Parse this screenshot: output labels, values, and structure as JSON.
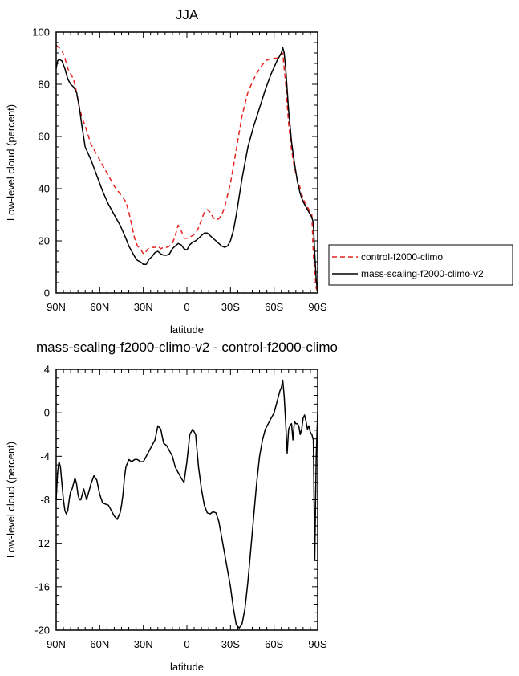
{
  "chart_data": [
    {
      "type": "line",
      "title": "JJA",
      "xlabel": "latitude",
      "ylabel": "Low-level cloud (percent)",
      "xlim": [
        -90,
        90
      ],
      "ylim": [
        0,
        100
      ],
      "x_tick_labels": [
        "90N",
        "60N",
        "30N",
        "0",
        "30S",
        "60S",
        "90S"
      ],
      "y_tick_labels": [
        "0",
        "20",
        "40",
        "60",
        "80",
        "100"
      ],
      "legend": {
        "placement": "right-outside"
      },
      "series": [
        {
          "name": "control-f2000-climo",
          "color": "#e8231f",
          "dash": "dashed",
          "x": [
            -90,
            -88,
            -86,
            -84,
            -82,
            -80,
            -78,
            -76,
            -74,
            -72,
            -70,
            -66,
            -62,
            -58,
            -54,
            -50,
            -46,
            -42,
            -40,
            -38,
            -36,
            -34,
            -32,
            -30,
            -28,
            -26,
            -22,
            -20,
            -18,
            -16,
            -14,
            -12,
            -10,
            -8,
            -6,
            -4,
            -2,
            0,
            2,
            4,
            6,
            8,
            10,
            12,
            14,
            16,
            18,
            20,
            22,
            24,
            26,
            30,
            34,
            38,
            42,
            46,
            50,
            54,
            58,
            62,
            64,
            66,
            68,
            70,
            72,
            74,
            76,
            78,
            80,
            82,
            84,
            85,
            86,
            87,
            88,
            89,
            90
          ],
          "y": [
            95,
            94,
            93,
            90,
            86,
            84,
            82,
            77,
            71,
            67,
            64,
            57,
            53,
            49,
            45,
            41,
            38,
            35,
            31,
            26,
            21,
            18,
            17,
            15,
            16,
            17.5,
            17.5,
            18,
            17,
            17.5,
            17.5,
            18,
            19,
            22,
            26,
            24,
            21,
            21,
            21.5,
            22,
            23,
            25,
            28,
            31,
            32,
            31,
            29,
            28,
            28.5,
            30,
            33,
            42,
            55,
            68,
            77,
            82,
            86,
            89,
            90,
            90,
            91,
            92,
            80,
            65,
            55,
            48,
            44,
            40,
            36,
            34,
            32,
            31,
            30,
            15,
            8,
            2,
            0
          ]
        },
        {
          "name": "mass-scaling-f2000-climo-v2",
          "color": "#000000",
          "dash": "solid",
          "x": [
            -90,
            -89,
            -88,
            -86,
            -84,
            -82,
            -80,
            -78,
            -76,
            -74,
            -72,
            -70,
            -66,
            -62,
            -58,
            -54,
            -50,
            -46,
            -42,
            -40,
            -38,
            -36,
            -34,
            -32,
            -30,
            -28,
            -26,
            -24,
            -22,
            -20,
            -18,
            -16,
            -14,
            -12,
            -10,
            -8,
            -6,
            -4,
            -2,
            0,
            2,
            4,
            6,
            8,
            10,
            12,
            14,
            16,
            18,
            20,
            22,
            24,
            26,
            28,
            30,
            32,
            34,
            38,
            42,
            46,
            50,
            54,
            58,
            62,
            64,
            65,
            66,
            67,
            68,
            70,
            72,
            74,
            76,
            78,
            80,
            82,
            84,
            86,
            87,
            88,
            89,
            90
          ],
          "y": [
            86,
            89,
            89.5,
            89,
            86,
            82,
            80,
            79,
            77,
            71,
            63,
            56,
            51,
            45,
            39,
            34,
            30,
            26,
            21,
            18,
            16,
            14,
            12.5,
            12,
            11,
            11,
            13,
            14,
            15.5,
            16,
            15,
            14.5,
            14.5,
            15,
            17,
            18,
            19,
            18.5,
            17,
            16.5,
            18.5,
            19.5,
            20,
            21,
            22,
            23,
            23,
            22,
            21,
            20,
            19,
            18,
            17.5,
            18,
            20,
            24,
            30,
            44,
            56,
            64,
            71,
            78,
            84,
            89,
            91,
            92,
            94,
            92,
            86,
            70,
            58,
            50,
            43,
            38,
            35,
            33,
            31,
            29,
            27,
            15,
            5,
            0
          ]
        }
      ]
    },
    {
      "type": "line",
      "title": "mass-scaling-f2000-climo-v2 - control-f2000-climo",
      "xlabel": "latitude",
      "ylabel": "Low-level cloud (percent)",
      "xlim": [
        -90,
        90
      ],
      "ylim": [
        -20,
        4
      ],
      "x_tick_labels": [
        "90N",
        "60N",
        "30N",
        "0",
        "30S",
        "60S",
        "90S"
      ],
      "y_tick_labels": [
        "-20",
        "-16",
        "-12",
        "-8",
        "-4",
        "0",
        "4"
      ],
      "series": [
        {
          "color": "#000000",
          "dash": "solid",
          "x": [
            -90,
            -89,
            -88,
            -87,
            -86,
            -85,
            -84,
            -83,
            -82,
            -81,
            -80,
            -79,
            -78,
            -77,
            -76,
            -75,
            -74,
            -73,
            -72,
            -71,
            -70,
            -69,
            -68,
            -67,
            -66,
            -64,
            -62,
            -60,
            -58,
            -56,
            -54,
            -52,
            -50,
            -48,
            -46,
            -45,
            -44,
            -43,
            -42,
            -40,
            -38,
            -36,
            -34,
            -32,
            -30,
            -28,
            -26,
            -24,
            -22,
            -20,
            -18,
            -16,
            -14,
            -12,
            -10,
            -8,
            -6,
            -4,
            -2,
            0,
            2,
            4,
            6,
            8,
            10,
            12,
            14,
            16,
            18,
            20,
            22,
            24,
            26,
            28,
            30,
            32,
            34,
            36,
            38,
            40,
            42,
            44,
            46,
            48,
            50,
            52,
            54,
            56,
            58,
            60,
            62,
            64,
            65,
            66,
            67,
            68,
            69,
            70,
            71,
            72,
            73,
            74,
            75,
            76,
            77,
            78,
            79,
            80,
            81,
            82,
            83,
            84,
            85,
            86,
            87,
            88,
            89,
            90
          ],
          "y": [
            -8,
            -5.5,
            -4.5,
            -5,
            -6.5,
            -8,
            -9,
            -9.3,
            -9,
            -8,
            -7.2,
            -7,
            -6.5,
            -6,
            -6.5,
            -7.5,
            -8,
            -8,
            -7.5,
            -7,
            -7.5,
            -8,
            -7.5,
            -7,
            -6.5,
            -5.8,
            -6.2,
            -7.5,
            -8.3,
            -8.4,
            -8.5,
            -9,
            -9.5,
            -9.8,
            -9.2,
            -8.5,
            -7.5,
            -6,
            -5,
            -4.3,
            -4.5,
            -4.3,
            -4.3,
            -4.5,
            -4.5,
            -4,
            -3.5,
            -3,
            -2.5,
            -1.2,
            -1.5,
            -2.8,
            -3,
            -3.5,
            -4,
            -5,
            -5.5,
            -6,
            -6.4,
            -4.5,
            -2,
            -1.5,
            -2,
            -5,
            -7,
            -8.5,
            -9.2,
            -9.3,
            -9.1,
            -9.2,
            -10,
            -11.5,
            -13,
            -14.5,
            -16,
            -18,
            -19.5,
            -19.8,
            -19.4,
            -18,
            -15.5,
            -12.5,
            -9.5,
            -6.5,
            -4,
            -2.5,
            -1.5,
            -1,
            -0.5,
            0,
            1,
            2,
            2.3,
            3,
            1.5,
            -1,
            -3.7,
            -1.5,
            -1.2,
            -1,
            -2.5,
            -0.8,
            -1,
            -1,
            -1.2,
            -2,
            -1.5,
            -0.5,
            -0.2,
            -0.8,
            -1.5,
            -1.2,
            -1.8,
            -2,
            -2.5,
            -13.5,
            -4,
            0
          ]
        }
      ]
    }
  ]
}
